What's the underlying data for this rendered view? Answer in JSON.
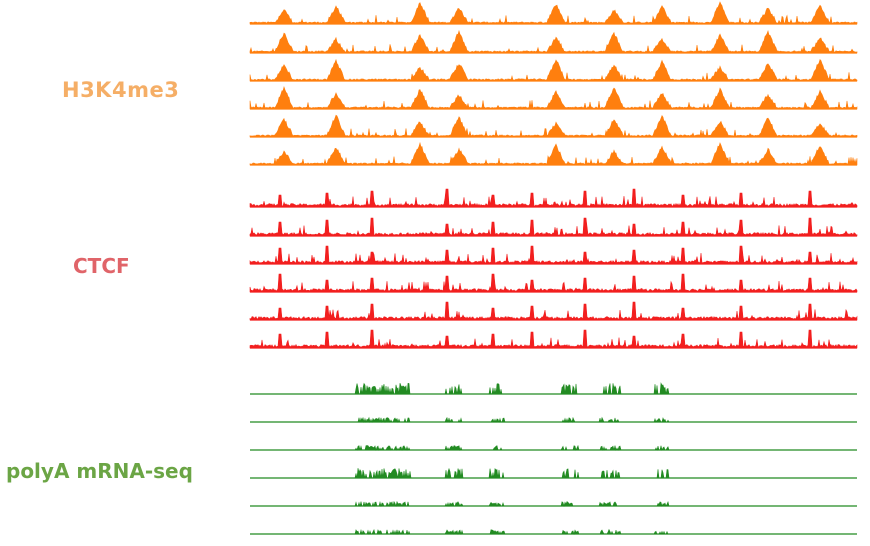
{
  "groups": [
    {
      "label": "H3K4me3",
      "label_color": "#F5AE66",
      "track_color": "#FF7F0E",
      "track_count": 6
    },
    {
      "label": "CTCF",
      "label_color": "#E06469",
      "track_color": "#F21F1F",
      "track_count": 6
    },
    {
      "label": "polyA mRNA-seq",
      "label_color": "#6BA545",
      "track_color": "#228B22",
      "track_count": 6
    }
  ]
}
